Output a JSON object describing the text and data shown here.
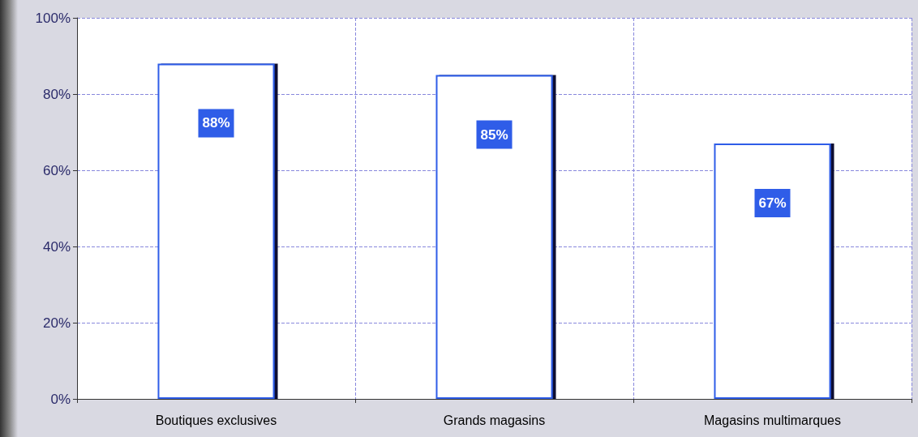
{
  "chart_data": {
    "type": "bar",
    "categories": [
      "Boutiques exclusives",
      "Grands magasins",
      "Magasins multimarques"
    ],
    "values": [
      88,
      85,
      67
    ],
    "color": "#ffffff",
    "value_labels": [
      "88%",
      "85%",
      "67%"
    ],
    "ylim": [
      0,
      100
    ],
    "yticks": [
      {
        "value": 0,
        "label": "0%"
      },
      {
        "value": 20,
        "label": "20%"
      },
      {
        "value": 40,
        "label": "40%"
      },
      {
        "value": 60,
        "label": "60%"
      },
      {
        "value": 80,
        "label": "80%"
      },
      {
        "value": 100,
        "label": "100%"
      }
    ],
    "grid": true
  }
}
